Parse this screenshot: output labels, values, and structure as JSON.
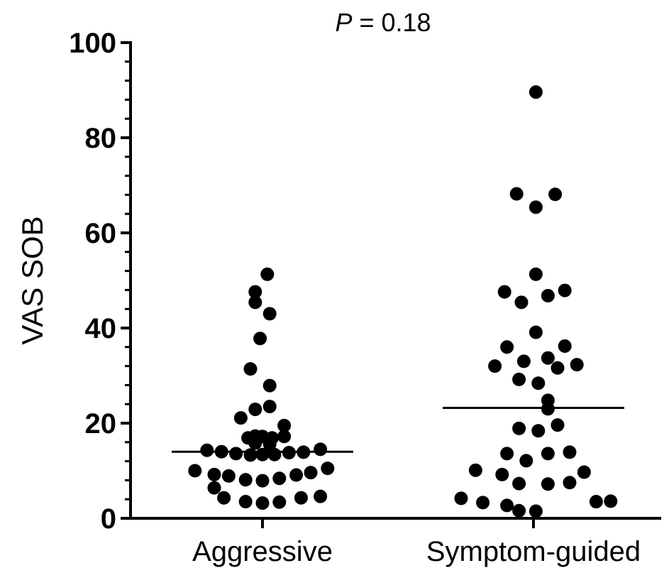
{
  "chart_data": {
    "type": "scatter",
    "annotation": {
      "italic": "P",
      "text": " = 0.18"
    },
    "ylabel": "VAS SOB",
    "ylim": [
      0,
      100
    ],
    "yticks": [
      0,
      20,
      40,
      60,
      80,
      100
    ],
    "yminor_step": 4,
    "categories": [
      "Aggressive",
      "Symptom-guided"
    ],
    "marker_color": "#000000",
    "groups": [
      {
        "category": "Aggressive",
        "median": 14.0,
        "points": [
          {
            "offset": 0.02,
            "y": 51.3
          },
          {
            "offset": -0.03,
            "y": 47.6
          },
          {
            "offset": -0.03,
            "y": 45.4
          },
          {
            "offset": 0.03,
            "y": 43.0
          },
          {
            "offset": -0.01,
            "y": 37.8
          },
          {
            "offset": -0.05,
            "y": 31.4
          },
          {
            "offset": 0.03,
            "y": 27.9
          },
          {
            "offset": -0.03,
            "y": 22.9
          },
          {
            "offset": 0.03,
            "y": 23.5
          },
          {
            "offset": -0.09,
            "y": 21.1
          },
          {
            "offset": 0.09,
            "y": 19.5
          },
          {
            "offset": -0.06,
            "y": 16.9
          },
          {
            "offset": -0.03,
            "y": 17.3
          },
          {
            "offset": 0.0,
            "y": 17.2
          },
          {
            "offset": 0.04,
            "y": 16.9
          },
          {
            "offset": 0.09,
            "y": 17.2
          },
          {
            "offset": -0.03,
            "y": 15.8
          },
          {
            "offset": 0.03,
            "y": 15.6
          },
          {
            "offset": -0.23,
            "y": 14.3
          },
          {
            "offset": -0.17,
            "y": 14.0
          },
          {
            "offset": -0.11,
            "y": 13.6
          },
          {
            "offset": -0.05,
            "y": 13.3
          },
          {
            "offset": 0.0,
            "y": 13.4
          },
          {
            "offset": 0.05,
            "y": 13.4
          },
          {
            "offset": 0.11,
            "y": 13.8
          },
          {
            "offset": 0.17,
            "y": 13.9
          },
          {
            "offset": 0.24,
            "y": 14.5
          },
          {
            "offset": -0.28,
            "y": 10.0
          },
          {
            "offset": -0.2,
            "y": 9.2
          },
          {
            "offset": -0.14,
            "y": 8.9
          },
          {
            "offset": -0.07,
            "y": 8.1
          },
          {
            "offset": 0.0,
            "y": 7.9
          },
          {
            "offset": 0.07,
            "y": 8.4
          },
          {
            "offset": 0.14,
            "y": 9.1
          },
          {
            "offset": 0.2,
            "y": 9.6
          },
          {
            "offset": 0.27,
            "y": 10.5
          },
          {
            "offset": -0.2,
            "y": 6.4
          },
          {
            "offset": -0.16,
            "y": 4.3
          },
          {
            "offset": -0.07,
            "y": 3.5
          },
          {
            "offset": 0.0,
            "y": 3.2
          },
          {
            "offset": 0.07,
            "y": 3.4
          },
          {
            "offset": 0.16,
            "y": 4.3
          },
          {
            "offset": 0.24,
            "y": 4.6
          }
        ]
      },
      {
        "category": "Symptom-guided",
        "median": 23.2,
        "points": [
          {
            "offset": 0.01,
            "y": 89.6
          },
          {
            "offset": -0.07,
            "y": 68.2
          },
          {
            "offset": 0.09,
            "y": 68.1
          },
          {
            "offset": 0.01,
            "y": 65.4
          },
          {
            "offset": 0.01,
            "y": 51.3
          },
          {
            "offset": -0.12,
            "y": 47.6
          },
          {
            "offset": 0.13,
            "y": 47.9
          },
          {
            "offset": -0.05,
            "y": 45.4
          },
          {
            "offset": 0.06,
            "y": 46.8
          },
          {
            "offset": 0.01,
            "y": 39.1
          },
          {
            "offset": -0.11,
            "y": 36.0
          },
          {
            "offset": 0.13,
            "y": 36.2
          },
          {
            "offset": -0.16,
            "y": 32.0
          },
          {
            "offset": -0.04,
            "y": 33.0
          },
          {
            "offset": 0.06,
            "y": 33.7
          },
          {
            "offset": 0.1,
            "y": 31.6
          },
          {
            "offset": 0.18,
            "y": 32.3
          },
          {
            "offset": -0.06,
            "y": 29.2
          },
          {
            "offset": 0.02,
            "y": 28.4
          },
          {
            "offset": 0.06,
            "y": 24.8
          },
          {
            "offset": 0.06,
            "y": 23.0
          },
          {
            "offset": -0.06,
            "y": 18.9
          },
          {
            "offset": 0.02,
            "y": 18.4
          },
          {
            "offset": 0.1,
            "y": 19.6
          },
          {
            "offset": -0.11,
            "y": 13.6
          },
          {
            "offset": -0.03,
            "y": 12.1
          },
          {
            "offset": 0.06,
            "y": 13.6
          },
          {
            "offset": 0.15,
            "y": 13.9
          },
          {
            "offset": -0.24,
            "y": 10.1
          },
          {
            "offset": -0.13,
            "y": 9.2
          },
          {
            "offset": 0.21,
            "y": 9.7
          },
          {
            "offset": -0.06,
            "y": 7.3
          },
          {
            "offset": 0.06,
            "y": 7.2
          },
          {
            "offset": 0.15,
            "y": 7.5
          },
          {
            "offset": -0.3,
            "y": 4.2
          },
          {
            "offset": -0.21,
            "y": 3.3
          },
          {
            "offset": -0.11,
            "y": 2.7
          },
          {
            "offset": -0.06,
            "y": 1.6
          },
          {
            "offset": 0.01,
            "y": 1.5
          },
          {
            "offset": 0.26,
            "y": 3.5
          },
          {
            "offset": 0.32,
            "y": 3.6
          }
        ]
      }
    ]
  }
}
